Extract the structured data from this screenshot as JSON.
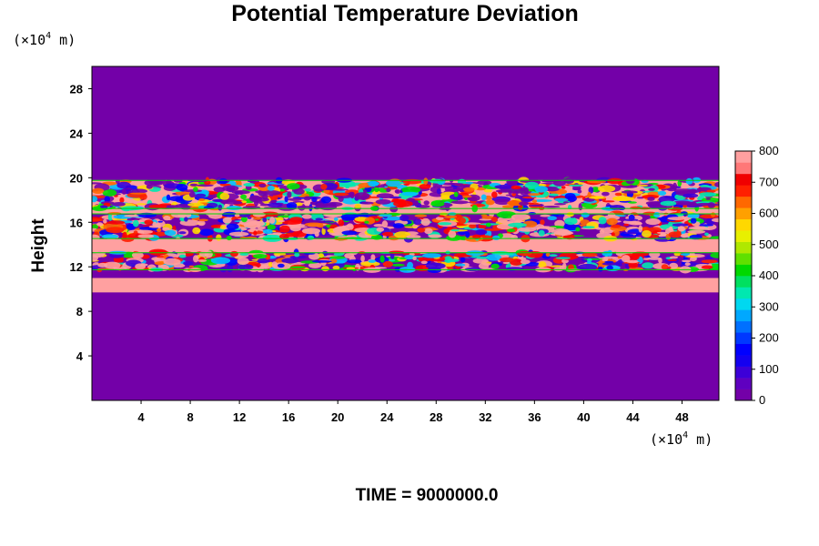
{
  "chart_data": {
    "type": "heatmap",
    "title": "Potential Temperature Deviation",
    "xlabel": "",
    "ylabel": "Height",
    "x_unit": "(×10",
    "x_unit_exp": "4",
    "x_unit_tail": " m)",
    "y_unit": "(×10",
    "y_unit_exp": "4",
    "y_unit_tail": " m)",
    "xlim": [
      0,
      51
    ],
    "ylim": [
      0,
      30
    ],
    "x_ticks": [
      4,
      8,
      12,
      16,
      20,
      24,
      28,
      32,
      36,
      40,
      44,
      48
    ],
    "x_tick_labels": [
      "4",
      "8",
      "12",
      "16",
      "20",
      "24",
      "28",
      "32",
      "36",
      "40",
      "44",
      "48"
    ],
    "y_ticks": [
      4,
      8,
      12,
      16,
      20,
      24,
      28
    ],
    "y_tick_labels": [
      "4",
      "8",
      "12",
      "16",
      "20",
      "24",
      "28"
    ],
    "colorbar": {
      "min": 0,
      "max": 800,
      "ticks": [
        0,
        100,
        200,
        300,
        400,
        500,
        600,
        700,
        800
      ],
      "tick_labels": [
        "0",
        "100",
        "200",
        "300",
        "400",
        "500",
        "600",
        "700",
        "800"
      ]
    },
    "layers": [
      {
        "y": [
          0,
          9.7
        ],
        "value": 0
      },
      {
        "y": [
          9.7,
          11.0
        ],
        "value": 800
      },
      {
        "y": [
          11.0,
          11.7
        ],
        "value": 0
      },
      {
        "y": [
          11.7,
          13.3
        ],
        "value": 0,
        "structured": true
      },
      {
        "y": [
          13.3,
          14.5
        ],
        "value": 800
      },
      {
        "y": [
          14.5,
          16.8
        ],
        "value": 0,
        "structured": true
      },
      {
        "y": [
          16.8,
          17.2
        ],
        "value": 800
      },
      {
        "y": [
          17.2,
          19.8
        ],
        "value": 800,
        "structured": true
      },
      {
        "y": [
          19.8,
          30
        ],
        "value": 0
      }
    ]
  },
  "footer": {
    "text": "TIME = 9000000.0"
  }
}
